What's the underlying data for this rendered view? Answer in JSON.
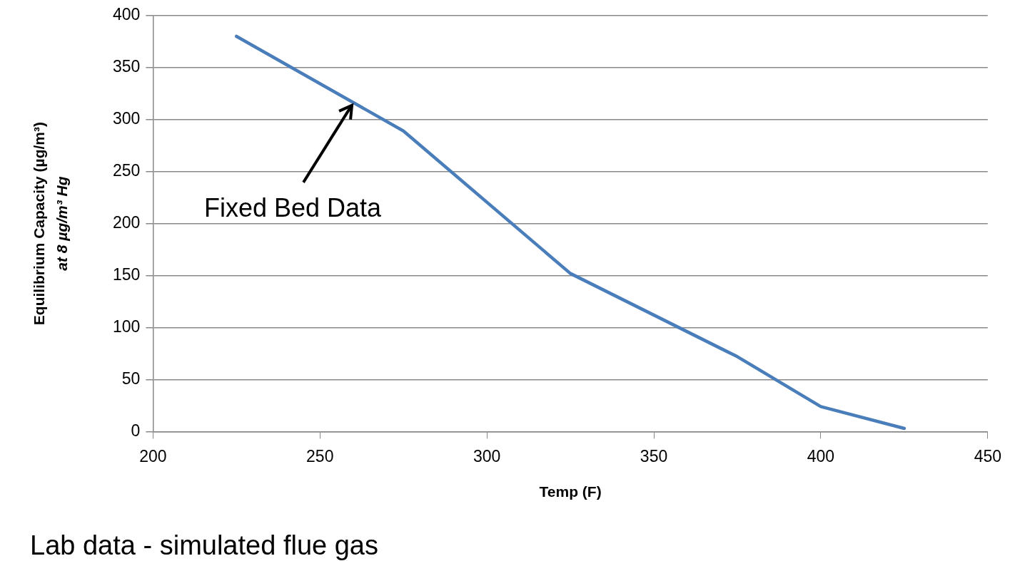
{
  "chart_data": {
    "type": "line",
    "xlabel": "Temp (F)",
    "ylabel": "Equilibrium Capacity (µg/m³)\nat 8 µg/m³ Hg",
    "x": [
      225,
      275,
      325,
      375,
      400,
      425
    ],
    "series": [
      {
        "color": "#4a7ebb",
        "values": [
          380,
          289,
          152,
          72,
          24,
          3
        ]
      }
    ],
    "xlim": [
      200,
      450
    ],
    "xticks": [
      200,
      250,
      300,
      350,
      400,
      450
    ],
    "ylim": [
      0,
      400
    ],
    "yticks": [
      0,
      50,
      100,
      150,
      200,
      250,
      300,
      350,
      400
    ],
    "grid": "y",
    "legend": false,
    "marker": "none",
    "line_style": "solid",
    "annotations": [
      {
        "text": "Fixed Bed Data",
        "x": 260,
        "y": 315
      },
      "Lab data - simulated flue gas"
    ]
  }
}
